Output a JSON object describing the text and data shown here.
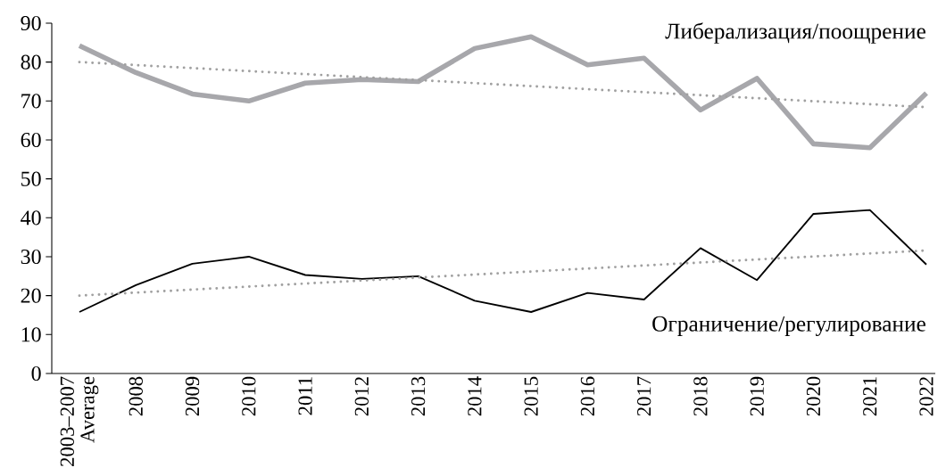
{
  "chart_data": {
    "type": "line",
    "categories": [
      "2003–2007 Average",
      "2008",
      "2009",
      "2010",
      "2011",
      "2012",
      "2013",
      "2014",
      "2015",
      "2016",
      "2017",
      "2018",
      "2019",
      "2020",
      "2021",
      "2022"
    ],
    "series": [
      {
        "name": "Либерализация/поощрение",
        "color": "#a7a7ab",
        "values": [
          84.2,
          77.3,
          71.8,
          70,
          74.6,
          75.5,
          75,
          83.5,
          86.5,
          79.3,
          81,
          67.7,
          75.8,
          59,
          58,
          72
        ]
      },
      {
        "name": "Ограничение/регулирование",
        "color": "#000000",
        "values": [
          15.8,
          22.7,
          28.2,
          30,
          25.3,
          24.3,
          25,
          18.7,
          15.8,
          20.7,
          19,
          32.2,
          24,
          41,
          42,
          28
        ]
      },
      {
        "color": "#a0a0a0",
        "line_style": "dotted",
        "values": [
          80,
          null,
          null,
          null,
          null,
          null,
          null,
          null,
          null,
          null,
          null,
          null,
          null,
          null,
          null,
          68.4
        ]
      },
      {
        "color": "#a0a0a0",
        "line_style": "dotted",
        "values": [
          20,
          null,
          null,
          null,
          null,
          null,
          null,
          null,
          null,
          null,
          null,
          null,
          null,
          null,
          null,
          31.6
        ]
      }
    ],
    "ylim": [
      0,
      90
    ],
    "yticks": [
      0,
      10,
      20,
      30,
      40,
      50,
      60,
      70,
      80,
      90
    ]
  }
}
